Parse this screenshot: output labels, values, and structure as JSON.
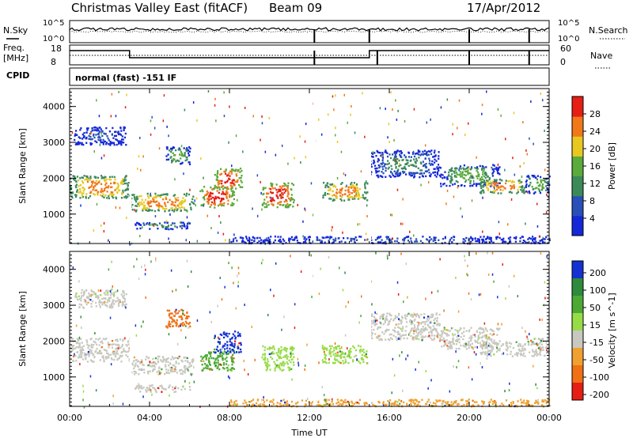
{
  "header": {
    "station": "Christmas Valley East (fitACF)",
    "beam": "Beam 09",
    "date": "17/Apr/2012"
  },
  "panels": {
    "nsky_label": "N.Sky",
    "nsky_ticks": [
      "10^5",
      "10^0"
    ],
    "nsearch_label": "N.Search",
    "freq_label": "Freq.",
    "freq_unit": "[MHz]",
    "freq_ticks": [
      "18",
      "8"
    ],
    "nave_label": "Nave",
    "nave_ticks": [
      "60",
      "0"
    ],
    "cpid_label": "CPID",
    "cpid_value": "normal (fast) -151 IF"
  },
  "chart_data": [
    {
      "type": "heatmap",
      "name": "power",
      "ylabel": "Slant Range [km]",
      "xlabel": "",
      "x_ticks": [
        "00:00",
        "04:00",
        "08:00",
        "12:00",
        "16:00",
        "20:00",
        "00:00"
      ],
      "xlim_hours": [
        0,
        24
      ],
      "y_ticks": [
        1000,
        2000,
        3000,
        4000
      ],
      "ylim": [
        180,
        4500
      ],
      "colorbar": {
        "label": "Power [dB]",
        "ticks": [
          "4",
          "8",
          "12",
          "16",
          "20",
          "24",
          "28"
        ],
        "colors": [
          "#1428d8",
          "#2850b8",
          "#3c8a5a",
          "#5aaa3c",
          "#e8c820",
          "#f07818",
          "#e61e14"
        ]
      },
      "features": [
        {
          "t0": 0.0,
          "t1": 3.0,
          "r0": 1450,
          "r1": 2100,
          "level": 5
        },
        {
          "t0": 0.2,
          "t1": 2.8,
          "r0": 2950,
          "r1": 3450,
          "level": 1
        },
        {
          "t0": 3.0,
          "t1": 6.2,
          "r0": 1100,
          "r1": 1600,
          "level": 5
        },
        {
          "t0": 4.8,
          "t1": 6.0,
          "r0": 2400,
          "r1": 2900,
          "level": 3
        },
        {
          "t0": 3.2,
          "t1": 6.0,
          "r0": 600,
          "r1": 800,
          "level": 2
        },
        {
          "t0": 6.5,
          "t1": 8.2,
          "r0": 1200,
          "r1": 1800,
          "level": 6
        },
        {
          "t0": 7.2,
          "t1": 8.6,
          "r0": 1700,
          "r1": 2300,
          "level": 6
        },
        {
          "t0": 9.6,
          "t1": 11.2,
          "r0": 1200,
          "r1": 1900,
          "level": 6
        },
        {
          "t0": 12.6,
          "t1": 14.9,
          "r0": 1400,
          "r1": 1900,
          "level": 5
        },
        {
          "t0": 15.0,
          "t1": 18.5,
          "r0": 2050,
          "r1": 2800,
          "level": 2
        },
        {
          "t0": 18.5,
          "t1": 21.5,
          "r0": 1800,
          "r1": 2400,
          "level": 3
        },
        {
          "t0": 20.5,
          "t1": 22.8,
          "r0": 1600,
          "r1": 2000,
          "level": 5
        },
        {
          "t0": 22.8,
          "t1": 24.0,
          "r0": 1600,
          "r1": 2100,
          "level": 3
        },
        {
          "t0": 8.0,
          "t1": 24.0,
          "r0": 200,
          "r1": 400,
          "level": 1
        }
      ]
    },
    {
      "type": "heatmap",
      "name": "velocity",
      "ylabel": "Slant Range [km]",
      "xlabel": "Time UT",
      "x_ticks": [
        "00:00",
        "04:00",
        "08:00",
        "12:00",
        "16:00",
        "20:00",
        "00:00"
      ],
      "xlim_hours": [
        0,
        24
      ],
      "y_ticks": [
        1000,
        2000,
        3000,
        4000
      ],
      "ylim": [
        180,
        4500
      ],
      "colorbar": {
        "label": "Velocity [m s^-1]",
        "ticks": [
          "200",
          "100",
          "50",
          "15",
          "-15",
          "-50",
          "-100",
          "-200"
        ],
        "colors": [
          "#1432d2",
          "#2e8a3c",
          "#4caa34",
          "#96dc46",
          "#c8c8c0",
          "#f0a030",
          "#f07014",
          "#e61e14"
        ]
      },
      "features": [
        {
          "t0": 0.0,
          "t1": 3.0,
          "r0": 1450,
          "r1": 2100,
          "level": 4
        },
        {
          "t0": 0.2,
          "t1": 2.8,
          "r0": 2950,
          "r1": 3450,
          "level": 4
        },
        {
          "t0": 3.0,
          "t1": 6.2,
          "r0": 1100,
          "r1": 1600,
          "level": 4
        },
        {
          "t0": 4.8,
          "t1": 6.0,
          "r0": 2400,
          "r1": 2900,
          "level": 6
        },
        {
          "t0": 3.2,
          "t1": 6.0,
          "r0": 600,
          "r1": 800,
          "level": 4
        },
        {
          "t0": 6.5,
          "t1": 8.2,
          "r0": 1200,
          "r1": 1800,
          "level": 2
        },
        {
          "t0": 7.2,
          "t1": 8.6,
          "r0": 1700,
          "r1": 2300,
          "level": 0
        },
        {
          "t0": 9.6,
          "t1": 11.2,
          "r0": 1200,
          "r1": 1900,
          "level": 3
        },
        {
          "t0": 12.6,
          "t1": 14.9,
          "r0": 1400,
          "r1": 1900,
          "level": 3
        },
        {
          "t0": 15.0,
          "t1": 18.5,
          "r0": 2050,
          "r1": 2800,
          "level": 4
        },
        {
          "t0": 18.5,
          "t1": 21.5,
          "r0": 1800,
          "r1": 2400,
          "level": 4
        },
        {
          "t0": 20.5,
          "t1": 22.8,
          "r0": 1600,
          "r1": 2000,
          "level": 4
        },
        {
          "t0": 22.8,
          "t1": 24.0,
          "r0": 1600,
          "r1": 2100,
          "level": 4
        },
        {
          "t0": 8.0,
          "t1": 24.0,
          "r0": 200,
          "r1": 400,
          "level": 5
        }
      ]
    }
  ]
}
